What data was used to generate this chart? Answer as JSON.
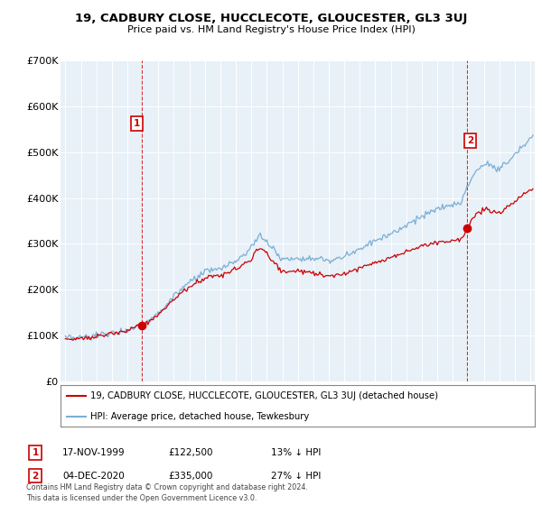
{
  "title": "19, CADBURY CLOSE, HUCCLECOTE, GLOUCESTER, GL3 3UJ",
  "subtitle": "Price paid vs. HM Land Registry's House Price Index (HPI)",
  "red_label": "19, CADBURY CLOSE, HUCCLECOTE, GLOUCESTER, GL3 3UJ (detached house)",
  "blue_label": "HPI: Average price, detached house, Tewkesbury",
  "annotation1_date": "17-NOV-1999",
  "annotation1_price": "£122,500",
  "annotation1_pct": "13% ↓ HPI",
  "annotation2_date": "04-DEC-2020",
  "annotation2_price": "£335,000",
  "annotation2_pct": "27% ↓ HPI",
  "footer": "Contains HM Land Registry data © Crown copyright and database right 2024.\nThis data is licensed under the Open Government Licence v3.0.",
  "ylim": [
    0,
    700000
  ],
  "yticks": [
    0,
    100000,
    200000,
    300000,
    400000,
    500000,
    600000,
    700000
  ],
  "ytick_labels": [
    "£0",
    "£100K",
    "£200K",
    "£300K",
    "£400K",
    "£500K",
    "£600K",
    "£700K"
  ],
  "red_color": "#cc0000",
  "blue_color": "#7bafd4",
  "background_color": "#e8f0f8",
  "sale1_x": 1999.92,
  "sale1_y": 122500,
  "sale2_x": 2020.92,
  "sale2_y": 335000,
  "xlim_left": 1994.7,
  "xlim_right": 2025.3
}
